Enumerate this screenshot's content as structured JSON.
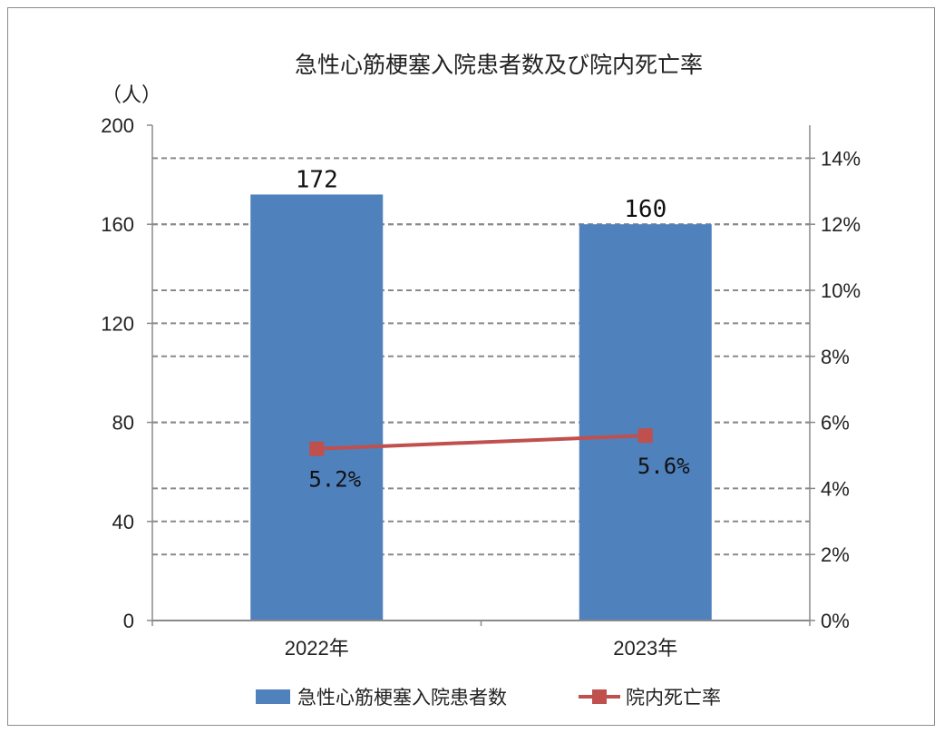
{
  "chart_data": {
    "type": "bar",
    "title": "急性心筋梗塞入院患者数及び院内死亡率",
    "y_unit": "（人）",
    "categories": [
      "2022年",
      "2023年"
    ],
    "series": [
      {
        "name": "急性心筋梗塞入院患者数",
        "type": "bar",
        "axis": "left",
        "color": "#4f81bd",
        "values": [
          172,
          160
        ],
        "labels": [
          "172",
          "160"
        ]
      },
      {
        "name": "院内死亡率",
        "type": "line",
        "axis": "right",
        "color": "#c0504d",
        "values": [
          5.2,
          5.6
        ],
        "labels": [
          "5.2%",
          "5.6%"
        ]
      }
    ],
    "y_left": {
      "min": 0,
      "max": 200,
      "ticks": [
        "0",
        "40",
        "80",
        "120",
        "160",
        "200"
      ]
    },
    "y_right": {
      "min": 0,
      "max": 15,
      "ticks": [
        "0%",
        "2%",
        "4%",
        "6%",
        "8%",
        "10%",
        "12%",
        "14%"
      ]
    },
    "grid": true,
    "legend": "bottom"
  }
}
